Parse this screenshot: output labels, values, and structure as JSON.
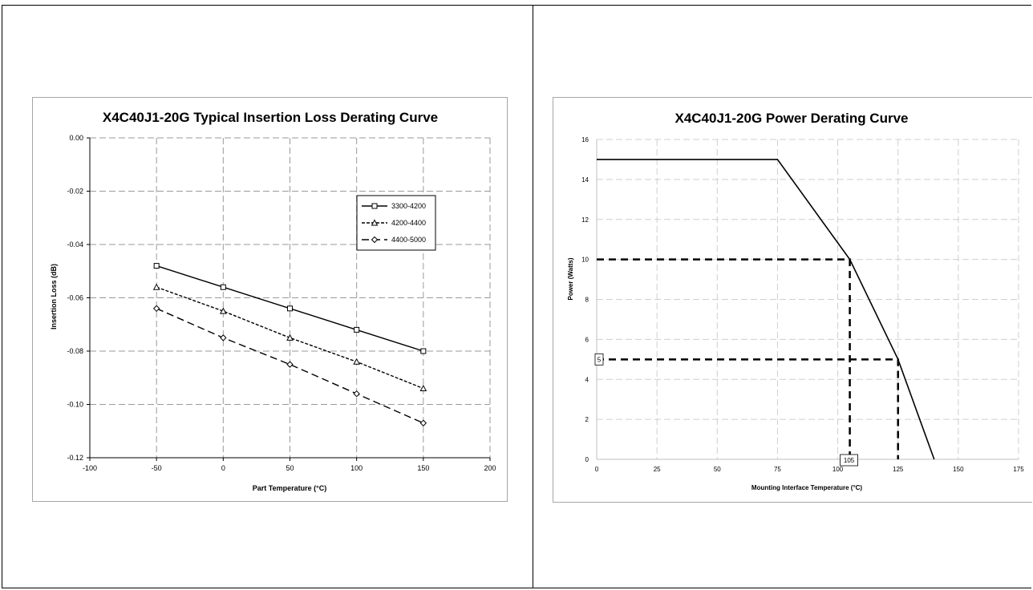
{
  "chart_data": [
    {
      "type": "line",
      "title": "X4C40J1-20G Typical Insertion Loss Derating Curve",
      "xlabel": "Part Temperature (°C)",
      "ylabel": "Insertion Loss (dB)",
      "xlim": [
        -100,
        200
      ],
      "ylim": [
        -0.12,
        0.0
      ],
      "xticks": [
        "-100",
        "-50",
        "0",
        "50",
        "100",
        "150",
        "200"
      ],
      "yticks": [
        "0.00",
        "-0.02",
        "-0.04",
        "-0.06",
        "-0.08",
        "-0.10",
        "-0.12"
      ],
      "grid": true,
      "legend_position": "right",
      "x": [
        -50,
        0,
        50,
        100,
        150
      ],
      "series": [
        {
          "name": "3300-4200",
          "marker": "square",
          "dash": "solid",
          "values": [
            -0.048,
            -0.056,
            -0.064,
            -0.072,
            -0.08
          ]
        },
        {
          "name": "4200-4400",
          "marker": "triangle",
          "dash": "dotted",
          "values": [
            -0.056,
            -0.065,
            -0.075,
            -0.084,
            -0.094
          ]
        },
        {
          "name": "4400-5000",
          "marker": "diamond",
          "dash": "dashed",
          "values": [
            -0.064,
            -0.075,
            -0.085,
            -0.096,
            -0.107
          ]
        }
      ]
    },
    {
      "type": "line",
      "title": "X4C40J1-20G Power Derating Curve",
      "xlabel": "Mounting Interface Temperature (°C)",
      "ylabel": "Power (Watts)",
      "xlim": [
        0,
        175
      ],
      "ylim": [
        0,
        16
      ],
      "xticks": [
        "0",
        "25",
        "50",
        "75",
        "100",
        "125",
        "150",
        "175"
      ],
      "yticks": [
        "0",
        "2",
        "4",
        "6",
        "8",
        "10",
        "12",
        "14",
        "16"
      ],
      "grid": true,
      "series": [
        {
          "points": [
            [
              0,
              15
            ],
            [
              75,
              15
            ],
            [
              105,
              10
            ],
            [
              125,
              5
            ],
            [
              140,
              0
            ]
          ]
        }
      ],
      "reference_lines": [
        {
          "points": [
            [
              0,
              10
            ],
            [
              105,
              10
            ],
            [
              105,
              0
            ]
          ]
        },
        {
          "points": [
            [
              0,
              5
            ],
            [
              125,
              5
            ],
            [
              125,
              0
            ]
          ]
        }
      ],
      "annotations": [
        "5",
        "105"
      ]
    }
  ]
}
